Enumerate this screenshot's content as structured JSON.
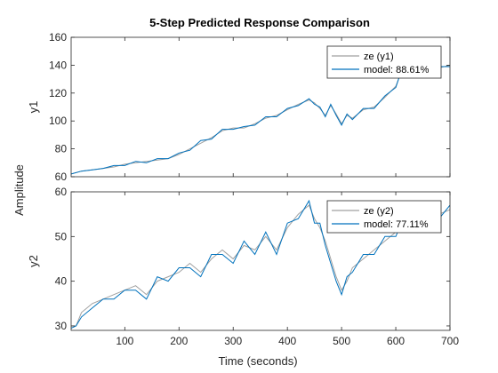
{
  "figure": {
    "title": "5-Step Predicted Response Comparison",
    "xlabel": "Time (seconds)",
    "ylabel": "Amplitude"
  },
  "colors": {
    "measured": "#a0a0a0",
    "model": "#0072bd"
  },
  "chart_data": [
    {
      "type": "line",
      "ylabel": "y1",
      "xlim": [
        1,
        700
      ],
      "ylim": [
        60,
        160
      ],
      "xticks": [
        100,
        200,
        300,
        400,
        500,
        600,
        700
      ],
      "yticks": [
        60,
        80,
        100,
        120,
        140,
        160
      ],
      "legend": "top-right",
      "legend_entries": [
        "ze (y1)",
        "model: 88.61%"
      ],
      "series": [
        {
          "name": "ze (y1)",
          "x": [
            1,
            20,
            40,
            60,
            80,
            100,
            120,
            140,
            160,
            180,
            200,
            220,
            240,
            260,
            280,
            300,
            320,
            340,
            360,
            380,
            400,
            420,
            440,
            450,
            460,
            470,
            480,
            490,
            500,
            510,
            520,
            540,
            560,
            580,
            600,
            610,
            620,
            640,
            660,
            680,
            700
          ],
          "y": [
            62,
            64,
            65,
            66,
            67,
            69,
            70,
            71,
            72,
            73,
            76,
            80,
            84,
            88,
            93,
            95,
            95,
            98,
            102,
            104,
            108,
            112,
            115,
            113,
            109,
            104,
            111,
            105,
            98,
            104,
            102,
            108,
            110,
            117,
            125,
            135,
            148,
            137,
            142,
            138,
            140
          ]
        },
        {
          "name": "model: 88.61%",
          "x": [
            1,
            20,
            40,
            60,
            80,
            100,
            120,
            140,
            160,
            180,
            200,
            220,
            240,
            260,
            280,
            300,
            320,
            340,
            360,
            380,
            400,
            420,
            440,
            450,
            460,
            470,
            480,
            490,
            500,
            510,
            520,
            540,
            560,
            580,
            600,
            610,
            620,
            640,
            660,
            680,
            700
          ],
          "y": [
            62,
            64,
            65,
            66,
            68,
            68,
            71,
            70,
            73,
            73,
            77,
            79,
            86,
            87,
            94,
            94,
            96,
            97,
            103,
            103,
            109,
            111,
            116,
            112,
            110,
            103,
            112,
            104,
            97,
            105,
            101,
            109,
            109,
            118,
            124,
            136,
            147,
            138,
            141,
            139,
            139
          ]
        }
      ]
    },
    {
      "type": "line",
      "ylabel": "y2",
      "xlim": [
        1,
        700
      ],
      "ylim": [
        29,
        60
      ],
      "xticks": [
        100,
        200,
        300,
        400,
        500,
        600,
        700
      ],
      "yticks": [
        30,
        40,
        50,
        60
      ],
      "legend": "top-right",
      "legend_entries": [
        "ze (y2)",
        "model: 77.11%"
      ],
      "series": [
        {
          "name": "ze (y2)",
          "x": [
            1,
            10,
            20,
            40,
            60,
            80,
            100,
            120,
            140,
            160,
            180,
            200,
            220,
            240,
            260,
            280,
            300,
            320,
            340,
            360,
            380,
            400,
            420,
            440,
            450,
            460,
            470,
            480,
            490,
            500,
            510,
            520,
            540,
            560,
            580,
            600,
            620,
            640,
            660,
            680,
            700
          ],
          "y": [
            30,
            30,
            33,
            35,
            36,
            37,
            38,
            39,
            37,
            40,
            41,
            42,
            44,
            42,
            45,
            47,
            45,
            48,
            47,
            50,
            47,
            52,
            55,
            57,
            54,
            52,
            49,
            45,
            41,
            38,
            40,
            43,
            45,
            47,
            49,
            51,
            55,
            52,
            54,
            55,
            56
          ]
        },
        {
          "name": "model: 77.11%",
          "x": [
            1,
            10,
            20,
            40,
            60,
            80,
            100,
            120,
            140,
            160,
            180,
            200,
            220,
            240,
            260,
            280,
            300,
            320,
            340,
            360,
            380,
            400,
            420,
            440,
            450,
            460,
            470,
            480,
            490,
            500,
            510,
            520,
            540,
            560,
            580,
            600,
            620,
            640,
            660,
            680,
            700
          ],
          "y": [
            29.5,
            30,
            32,
            34,
            36,
            36,
            38,
            38,
            36,
            41,
            40,
            43,
            43,
            41,
            46,
            46,
            44,
            49,
            46,
            51,
            46,
            53,
            54,
            58,
            53,
            53,
            48,
            44,
            40,
            37,
            41,
            42,
            46,
            46,
            50,
            50,
            56,
            51,
            55,
            54,
            57
          ]
        }
      ]
    }
  ]
}
